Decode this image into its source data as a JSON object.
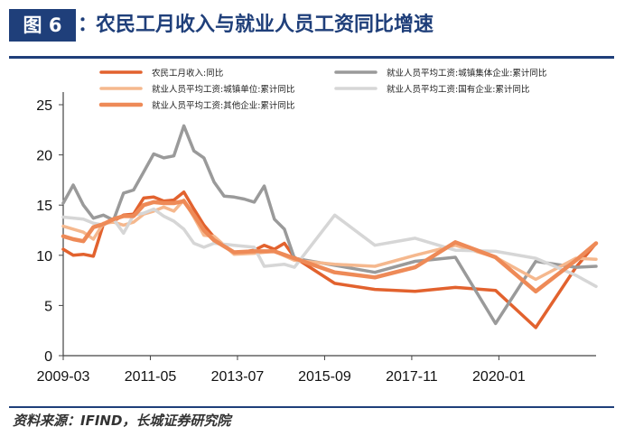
{
  "header": {
    "badge": "图 6",
    "colon": "：",
    "title": "农民工月收入与就业人员工资同比增速"
  },
  "source": "资料来源：IFIND，长城证券研究院",
  "chart_data": {
    "type": "line",
    "title": "农民工月收入与就业人员工资同比增速",
    "xlabel": "",
    "ylabel": "",
    "ylim": [
      0,
      25
    ],
    "yticks": [
      0,
      5,
      10,
      15,
      20,
      25
    ],
    "xticks": [
      "2009-03",
      "2011-05",
      "2013-07",
      "2015-09",
      "2017-11",
      "2020-01"
    ],
    "xrange": [
      "2009-03",
      "2022-06"
    ],
    "grid": false,
    "legend": "top",
    "series": [
      {
        "name": "农民工月收入:同比",
        "color": "#e2622e",
        "width": 3.5,
        "points": [
          [
            "2009-03",
            10.6
          ],
          [
            "2009-06",
            10.0
          ],
          [
            "2009-09",
            10.1
          ],
          [
            "2009-12",
            9.9
          ],
          [
            "2010-03",
            13.1
          ],
          [
            "2010-06",
            13.4
          ],
          [
            "2010-09",
            14.0
          ],
          [
            "2010-12",
            14.1
          ],
          [
            "2011-03",
            15.7
          ],
          [
            "2011-06",
            15.8
          ],
          [
            "2011-09",
            15.4
          ],
          [
            "2011-12",
            15.5
          ],
          [
            "2012-03",
            16.3
          ],
          [
            "2012-06",
            14.6
          ],
          [
            "2012-09",
            13.0
          ],
          [
            "2012-12",
            11.8
          ],
          [
            "2013-06",
            10.2
          ],
          [
            "2013-12",
            10.5
          ],
          [
            "2014-03",
            11.0
          ],
          [
            "2014-06",
            10.6
          ],
          [
            "2014-09",
            11.2
          ],
          [
            "2014-12",
            9.8
          ],
          [
            "2015-12",
            7.2
          ],
          [
            "2016-12",
            6.6
          ],
          [
            "2017-12",
            6.4
          ],
          [
            "2018-12",
            6.8
          ],
          [
            "2019-12",
            6.5
          ],
          [
            "2020-12",
            2.8
          ],
          [
            "2021-12",
            8.8
          ],
          [
            "2022-06",
            11.2
          ]
        ]
      },
      {
        "name": "就业人员平均工资:城镇集体企业:累计同比",
        "color": "#9a9a9a",
        "width": 3.5,
        "points": [
          [
            "2009-03",
            15.2
          ],
          [
            "2009-06",
            17.0
          ],
          [
            "2009-09",
            15.0
          ],
          [
            "2009-12",
            13.7
          ],
          [
            "2010-03",
            14.0
          ],
          [
            "2010-06",
            13.5
          ],
          [
            "2010-09",
            16.2
          ],
          [
            "2010-12",
            16.5
          ],
          [
            "2011-03",
            18.3
          ],
          [
            "2011-06",
            20.1
          ],
          [
            "2011-09",
            19.7
          ],
          [
            "2011-12",
            19.9
          ],
          [
            "2012-03",
            22.9
          ],
          [
            "2012-06",
            20.4
          ],
          [
            "2012-09",
            19.7
          ],
          [
            "2012-12",
            17.3
          ],
          [
            "2013-03",
            15.9
          ],
          [
            "2013-06",
            15.8
          ],
          [
            "2013-09",
            15.6
          ],
          [
            "2013-12",
            15.3
          ],
          [
            "2014-03",
            16.9
          ],
          [
            "2014-06",
            13.6
          ],
          [
            "2014-09",
            12.6
          ],
          [
            "2014-12",
            9.7
          ],
          [
            "2015-12",
            9.0
          ],
          [
            "2016-12",
            8.3
          ],
          [
            "2017-12",
            9.4
          ],
          [
            "2018-12",
            9.8
          ],
          [
            "2019-12",
            3.2
          ],
          [
            "2020-12",
            9.4
          ],
          [
            "2021-12",
            8.8
          ],
          [
            "2022-06",
            8.9
          ]
        ]
      },
      {
        "name": "就业人员平均工资:城镇单位:累计同比",
        "color": "#f5b88e",
        "width": 3.5,
        "points": [
          [
            "2009-03",
            12.9
          ],
          [
            "2009-09",
            12.3
          ],
          [
            "2009-12",
            11.6
          ],
          [
            "2010-03",
            13.2
          ],
          [
            "2010-06",
            13.3
          ],
          [
            "2010-09",
            13.0
          ],
          [
            "2010-12",
            13.3
          ],
          [
            "2011-03",
            14.1
          ],
          [
            "2011-06",
            14.4
          ],
          [
            "2011-09",
            14.8
          ],
          [
            "2011-12",
            14.4
          ],
          [
            "2012-03",
            15.5
          ],
          [
            "2012-06",
            13.8
          ],
          [
            "2012-09",
            12.0
          ],
          [
            "2012-12",
            11.9
          ],
          [
            "2013-06",
            10.1
          ],
          [
            "2013-12",
            10.2
          ],
          [
            "2014-06",
            10.4
          ],
          [
            "2014-12",
            9.5
          ],
          [
            "2015-12",
            9.1
          ],
          [
            "2016-12",
            8.9
          ],
          [
            "2017-12",
            10.0
          ],
          [
            "2018-12",
            11.0
          ],
          [
            "2019-12",
            9.8
          ],
          [
            "2020-12",
            7.6
          ],
          [
            "2021-12",
            9.7
          ],
          [
            "2022-06",
            9.6
          ]
        ]
      },
      {
        "name": "就业人员平均工资:国有企业:累计同比",
        "color": "#d6d6d6",
        "width": 3.5,
        "points": [
          [
            "2009-03",
            13.8
          ],
          [
            "2009-09",
            13.6
          ],
          [
            "2009-12",
            13.2
          ],
          [
            "2010-03",
            13.0
          ],
          [
            "2010-06",
            13.6
          ],
          [
            "2010-09",
            12.2
          ],
          [
            "2010-12",
            14.0
          ],
          [
            "2011-03",
            14.2
          ],
          [
            "2011-06",
            14.6
          ],
          [
            "2011-09",
            13.9
          ],
          [
            "2011-12",
            13.4
          ],
          [
            "2012-03",
            12.6
          ],
          [
            "2012-06",
            11.2
          ],
          [
            "2012-09",
            10.8
          ],
          [
            "2012-12",
            11.2
          ],
          [
            "2013-06",
            11.0
          ],
          [
            "2013-12",
            10.8
          ],
          [
            "2014-03",
            8.9
          ],
          [
            "2014-06",
            9.0
          ],
          [
            "2014-09",
            9.1
          ],
          [
            "2014-12",
            8.8
          ],
          [
            "2015-12",
            14.0
          ],
          [
            "2016-12",
            11.0
          ],
          [
            "2017-12",
            11.7
          ],
          [
            "2018-12",
            10.5
          ],
          [
            "2019-12",
            10.4
          ],
          [
            "2020-12",
            9.7
          ],
          [
            "2021-12",
            8.0
          ],
          [
            "2022-06",
            6.9
          ]
        ]
      },
      {
        "name": "就业人员平均工资:其他企业:累计同比",
        "color": "#ee8a57",
        "width": 4.5,
        "points": [
          [
            "2009-03",
            11.9
          ],
          [
            "2009-06",
            11.6
          ],
          [
            "2009-09",
            11.4
          ],
          [
            "2009-12",
            12.8
          ],
          [
            "2010-03",
            13.1
          ],
          [
            "2010-06",
            13.6
          ],
          [
            "2010-09",
            13.9
          ],
          [
            "2010-12",
            13.9
          ],
          [
            "2011-03",
            15.0
          ],
          [
            "2011-06",
            15.3
          ],
          [
            "2011-09",
            15.2
          ],
          [
            "2011-12",
            15.2
          ],
          [
            "2012-03",
            15.4
          ],
          [
            "2012-06",
            14.0
          ],
          [
            "2012-09",
            12.5
          ],
          [
            "2012-12",
            11.5
          ],
          [
            "2013-06",
            10.3
          ],
          [
            "2013-12",
            10.4
          ],
          [
            "2014-06",
            10.4
          ],
          [
            "2014-12",
            9.7
          ],
          [
            "2015-12",
            8.3
          ],
          [
            "2016-12",
            7.8
          ],
          [
            "2017-12",
            8.8
          ],
          [
            "2018-12",
            11.3
          ],
          [
            "2019-12",
            9.8
          ],
          [
            "2020-12",
            6.4
          ],
          [
            "2021-12",
            9.5
          ],
          [
            "2022-06",
            11.2
          ]
        ]
      }
    ]
  }
}
